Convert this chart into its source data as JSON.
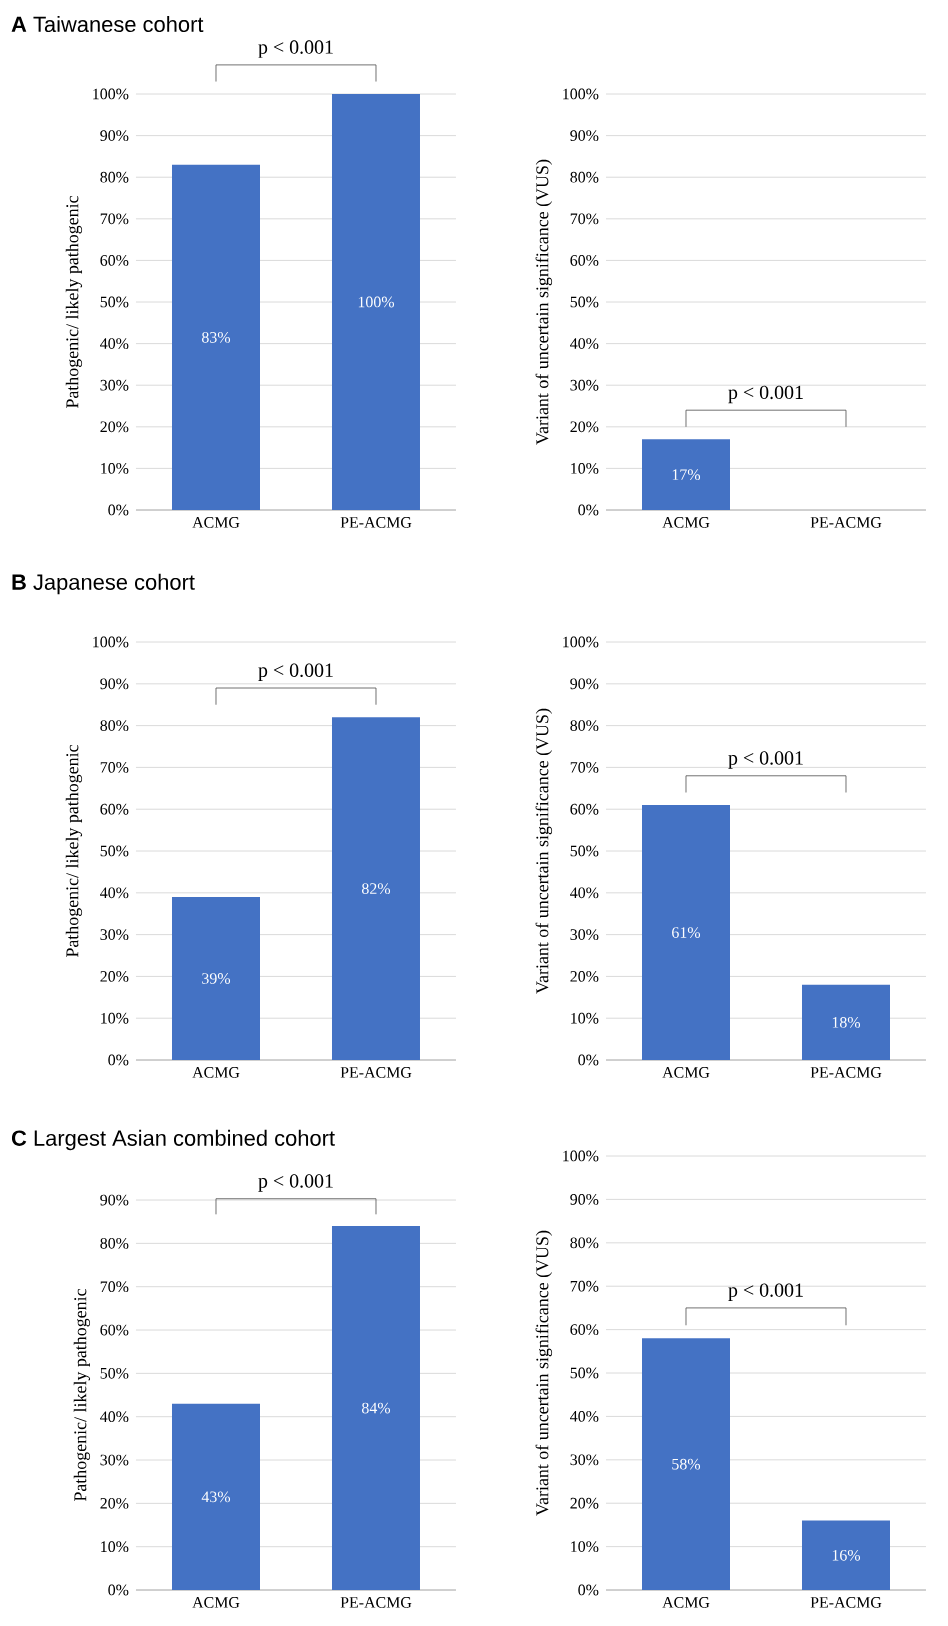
{
  "chart_data": [
    {
      "type": "bar",
      "title": "**A** Taiwanese cohort",
      "ylabel": "Pathogenic/ likely pathogenic",
      "categories": [
        "ACMG",
        "PE-ACMG"
      ],
      "values": [
        83,
        100
      ],
      "color": "#4472c4",
      "value_labels": [
        "83%",
        "100%"
      ],
      "ylim": [
        0,
        100
      ],
      "yticks": [
        {
          "value": 0,
          "label": "0%"
        },
        {
          "value": 10,
          "label": "10%"
        },
        {
          "value": 20,
          "label": "20%"
        },
        {
          "value": 30,
          "label": "30%"
        },
        {
          "value": 40,
          "label": "40%"
        },
        {
          "value": 50,
          "label": "50%"
        },
        {
          "value": 60,
          "label": "60%"
        },
        {
          "value": 70,
          "label": "70%"
        },
        {
          "value": 80,
          "label": "80%"
        },
        {
          "value": 90,
          "label": "90%"
        },
        {
          "value": 100,
          "label": "100%"
        }
      ],
      "grid": "y",
      "annotations": [
        "p < 0.001"
      ]
    },
    {
      "type": "bar",
      "ylabel": "Variant of uncertain significance (VUS)",
      "categories": [
        "ACMG",
        "PE-ACMG"
      ],
      "values": [
        17,
        0
      ],
      "color": "#4472c4",
      "value_labels": [
        "17%",
        null
      ],
      "ylim": [
        0,
        100
      ],
      "yticks": [
        {
          "value": 0,
          "label": "0%"
        },
        {
          "value": 10,
          "label": "10%"
        },
        {
          "value": 20,
          "label": "20%"
        },
        {
          "value": 30,
          "label": "30%"
        },
        {
          "value": 40,
          "label": "40%"
        },
        {
          "value": 50,
          "label": "50%"
        },
        {
          "value": 60,
          "label": "60%"
        },
        {
          "value": 70,
          "label": "70%"
        },
        {
          "value": 80,
          "label": "80%"
        },
        {
          "value": 90,
          "label": "90%"
        },
        {
          "value": 100,
          "label": "100%"
        }
      ],
      "grid": "y",
      "annotations": [
        "p < 0.001"
      ]
    },
    {
      "type": "bar",
      "title": "**B** Japanese cohort",
      "ylabel": "Pathogenic/ likely pathogenic",
      "categories": [
        "ACMG",
        "PE-ACMG"
      ],
      "values": [
        39,
        82
      ],
      "color": "#4472c4",
      "value_labels": [
        "39%",
        "82%"
      ],
      "ylim": [
        0,
        100
      ],
      "yticks": [
        {
          "value": 0,
          "label": "0%"
        },
        {
          "value": 10,
          "label": "10%"
        },
        {
          "value": 20,
          "label": "20%"
        },
        {
          "value": 30,
          "label": "30%"
        },
        {
          "value": 40,
          "label": "40%"
        },
        {
          "value": 50,
          "label": "50%"
        },
        {
          "value": 60,
          "label": "60%"
        },
        {
          "value": 70,
          "label": "70%"
        },
        {
          "value": 80,
          "label": "80%"
        },
        {
          "value": 90,
          "label": "90%"
        },
        {
          "value": 100,
          "label": "100%"
        }
      ],
      "grid": "y",
      "annotations": [
        "p < 0.001"
      ]
    },
    {
      "type": "bar",
      "ylabel": "Variant of uncertain significance (VUS)",
      "categories": [
        "ACMG",
        "PE-ACMG"
      ],
      "values": [
        61,
        18
      ],
      "color": "#4472c4",
      "value_labels": [
        "61%",
        "18%"
      ],
      "ylim": [
        0,
        100
      ],
      "yticks": [
        {
          "value": 0,
          "label": "0%"
        },
        {
          "value": 10,
          "label": "10%"
        },
        {
          "value": 20,
          "label": "20%"
        },
        {
          "value": 30,
          "label": "30%"
        },
        {
          "value": 40,
          "label": "40%"
        },
        {
          "value": 50,
          "label": "50%"
        },
        {
          "value": 60,
          "label": "60%"
        },
        {
          "value": 70,
          "label": "70%"
        },
        {
          "value": 80,
          "label": "80%"
        },
        {
          "value": 90,
          "label": "90%"
        },
        {
          "value": 100,
          "label": "100%"
        }
      ],
      "grid": "y",
      "annotations": [
        "p < 0.001"
      ]
    },
    {
      "type": "bar",
      "title": "**C** Largest Asian combined cohort",
      "ylabel": "Pathogenic/ likely pathogenic",
      "categories": [
        "ACMG",
        "PE-ACMG"
      ],
      "values": [
        43,
        84
      ],
      "color": "#4472c4",
      "value_labels": [
        "43%",
        "84%"
      ],
      "ylim": [
        0,
        90
      ],
      "yticks": [
        {
          "value": 0,
          "label": "0%"
        },
        {
          "value": 10,
          "label": "10%"
        },
        {
          "value": 20,
          "label": "20%"
        },
        {
          "value": 30,
          "label": "30%"
        },
        {
          "value": 40,
          "label": "40%"
        },
        {
          "value": 50,
          "label": "50%"
        },
        {
          "value": 60,
          "label": "60%"
        },
        {
          "value": 70,
          "label": "70%"
        },
        {
          "value": 80,
          "label": "80%"
        },
        {
          "value": 90,
          "label": "90%"
        }
      ],
      "grid": "y",
      "annotations": [
        "p < 0.001"
      ]
    },
    {
      "type": "bar",
      "ylabel": "Variant of uncertain significance (VUS)",
      "categories": [
        "ACMG",
        "PE-ACMG"
      ],
      "values": [
        58,
        16
      ],
      "color": "#4472c4",
      "value_labels": [
        "58%",
        "16%"
      ],
      "ylim": [
        0,
        100
      ],
      "yticks": [
        {
          "value": 0,
          "label": "0%"
        },
        {
          "value": 10,
          "label": "10%"
        },
        {
          "value": 20,
          "label": "20%"
        },
        {
          "value": 30,
          "label": "30%"
        },
        {
          "value": 40,
          "label": "40%"
        },
        {
          "value": 50,
          "label": "50%"
        },
        {
          "value": 60,
          "label": "60%"
        },
        {
          "value": 70,
          "label": "70%"
        },
        {
          "value": 80,
          "label": "80%"
        },
        {
          "value": 90,
          "label": "90%"
        },
        {
          "value": 100,
          "label": "100%"
        }
      ],
      "grid": "y",
      "annotations": [
        "p < 0.001"
      ]
    }
  ]
}
